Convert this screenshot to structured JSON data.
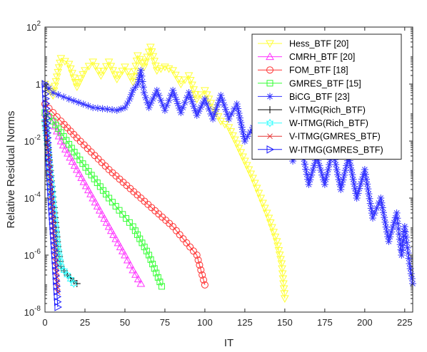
{
  "chart_data": {
    "type": "line",
    "xlabel": "IT",
    "ylabel": "Relative Residual Norms",
    "y_scale": "log",
    "xlim": [
      0,
      230
    ],
    "ylim": [
      1e-08,
      100
    ],
    "x_ticks": [
      "0",
      "25",
      "50",
      "75",
      "100",
      "125",
      "150",
      "175",
      "200",
      "225"
    ],
    "y_ticks": [
      {
        "label_base": "10",
        "label_exp": "-8",
        "value": 1e-08
      },
      {
        "label_base": "10",
        "label_exp": "-6",
        "value": 1e-06
      },
      {
        "label_base": "10",
        "label_exp": "-4",
        "value": 0.0001
      },
      {
        "label_base": "10",
        "label_exp": "-2",
        "value": 0.01
      },
      {
        "label_base": "1",
        "label_exp": "",
        "value": 1
      },
      {
        "label_base": "10",
        "label_exp": "2",
        "value": 100
      }
    ],
    "legend_position": "top-right",
    "grid": false,
    "series": [
      {
        "name": "Hess_BTF [20]",
        "color": "#ffff33",
        "marker": "triangle-down",
        "points": [
          [
            0,
            1.0
          ],
          [
            5,
            0.4
          ],
          [
            10,
            8
          ],
          [
            15,
            5
          ],
          [
            20,
            0.8
          ],
          [
            25,
            3
          ],
          [
            30,
            6
          ],
          [
            35,
            2
          ],
          [
            40,
            6
          ],
          [
            45,
            1.5
          ],
          [
            50,
            4
          ],
          [
            55,
            1.2
          ],
          [
            58,
            10
          ],
          [
            62,
            4
          ],
          [
            66,
            20
          ],
          [
            70,
            3
          ],
          [
            75,
            4
          ],
          [
            80,
            3
          ],
          [
            85,
            1.0
          ],
          [
            90,
            2
          ],
          [
            95,
            0.3
          ],
          [
            100,
            0.6
          ],
          [
            105,
            0.15
          ],
          [
            110,
            0.05
          ],
          [
            115,
            0.03
          ],
          [
            120,
            0.008
          ],
          [
            125,
            0.002
          ],
          [
            130,
            0.0005
          ],
          [
            135,
            0.0001
          ],
          [
            140,
            2e-05
          ],
          [
            145,
            3e-06
          ],
          [
            148,
            5e-07
          ],
          [
            150,
            3e-08
          ]
        ]
      },
      {
        "name": "CMRH_BTF [20]",
        "color": "#ff33ff",
        "marker": "triangle-up",
        "points": [
          [
            0,
            0.1
          ],
          [
            5,
            0.05
          ],
          [
            10,
            0.01
          ],
          [
            20,
            0.001
          ],
          [
            30,
            0.0001
          ],
          [
            40,
            1e-05
          ],
          [
            50,
            1e-06
          ],
          [
            55,
            3e-07
          ],
          [
            60,
            1e-07
          ]
        ]
      },
      {
        "name": "FOM_BTF [18]",
        "color": "#ff3333",
        "marker": "circle",
        "points": [
          [
            0,
            0.2
          ],
          [
            5,
            0.1
          ],
          [
            10,
            0.05
          ],
          [
            20,
            0.013
          ],
          [
            40,
            0.001
          ],
          [
            60,
            0.0001
          ],
          [
            80,
            1e-05
          ],
          [
            95,
            1e-06
          ],
          [
            100,
            9e-08
          ]
        ]
      },
      {
        "name": "GMRES_BTF [15]",
        "color": "#33ff33",
        "marker": "square",
        "points": [
          [
            0,
            0.1
          ],
          [
            5,
            0.05
          ],
          [
            10,
            0.02
          ],
          [
            20,
            0.003
          ],
          [
            40,
            0.0001
          ],
          [
            55,
            1e-05
          ],
          [
            65,
            1e-06
          ],
          [
            73,
            8e-08
          ]
        ]
      },
      {
        "name": "BiCG_BTF [23]",
        "color": "#3333ff",
        "marker": "asterisk",
        "points": [
          [
            0,
            1.0
          ],
          [
            5,
            0.5
          ],
          [
            15,
            0.3
          ],
          [
            30,
            0.15
          ],
          [
            45,
            0.12
          ],
          [
            50,
            0.15
          ],
          [
            53,
            0.3
          ],
          [
            55,
            0.6
          ],
          [
            58,
            1.0
          ],
          [
            60,
            3
          ],
          [
            62,
            0.5
          ],
          [
            65,
            0.15
          ],
          [
            70,
            0.6
          ],
          [
            75,
            0.12
          ],
          [
            80,
            0.6
          ],
          [
            85,
            0.1
          ],
          [
            90,
            0.5
          ],
          [
            95,
            0.08
          ],
          [
            100,
            0.3
          ],
          [
            105,
            0.06
          ],
          [
            110,
            0.4
          ],
          [
            115,
            0.06
          ],
          [
            120,
            0.2
          ],
          [
            125,
            0.01
          ],
          [
            130,
            0.03
          ],
          [
            135,
            0.004
          ],
          [
            140,
            0.02
          ],
          [
            145,
            0.003
          ],
          [
            150,
            0.01
          ],
          [
            155,
            0.002
          ],
          [
            160,
            0.008
          ],
          [
            165,
            0.0003
          ],
          [
            170,
            0.003
          ],
          [
            175,
            0.0003
          ],
          [
            180,
            0.005
          ],
          [
            185,
            0.0002
          ],
          [
            190,
            0.003
          ],
          [
            195,
            0.0001
          ],
          [
            200,
            0.001
          ],
          [
            205,
            2e-05
          ],
          [
            210,
            0.0001
          ],
          [
            215,
            3e-06
          ],
          [
            220,
            3e-05
          ],
          [
            223,
            1e-06
          ],
          [
            225,
            1e-05
          ],
          [
            228,
            5e-07
          ],
          [
            230,
            1e-07
          ]
        ]
      },
      {
        "name": "V-ITMG(Rich_BTF)",
        "color": "#000000",
        "marker": "plus",
        "points": [
          [
            0,
            0.05
          ],
          [
            2,
            0.005
          ],
          [
            4,
            0.0004
          ],
          [
            6,
            3e-05
          ],
          [
            8,
            2e-06
          ],
          [
            10,
            4e-07
          ],
          [
            14,
            2e-07
          ],
          [
            20,
            1e-07
          ]
        ]
      },
      {
        "name": "W-ITMG(Rich_BTF)",
        "color": "#33ffff",
        "marker": "hexagram",
        "points": [
          [
            0,
            0.05
          ],
          [
            2,
            0.004
          ],
          [
            4,
            0.0003
          ],
          [
            6,
            2e-05
          ],
          [
            8,
            2e-06
          ],
          [
            10,
            4e-07
          ],
          [
            14,
            2e-07
          ],
          [
            18,
            1e-07
          ]
        ]
      },
      {
        "name": "V-ITMG(GMRES_BTF)",
        "color": "#e63333",
        "marker": "x",
        "points": [
          [
            0,
            0.06
          ],
          [
            2,
            0.004
          ],
          [
            4,
            0.0002
          ],
          [
            6,
            2e-06
          ],
          [
            8,
            5e-08
          ]
        ]
      },
      {
        "name": "W-ITMG(GMRES_BTF)",
        "color": "#1a1aff",
        "marker": "triangle-right",
        "points": [
          [
            0,
            1.0
          ],
          [
            2,
            0.004
          ],
          [
            4,
            5e-05
          ],
          [
            6,
            1e-06
          ],
          [
            8,
            1.5e-08
          ]
        ]
      }
    ]
  }
}
